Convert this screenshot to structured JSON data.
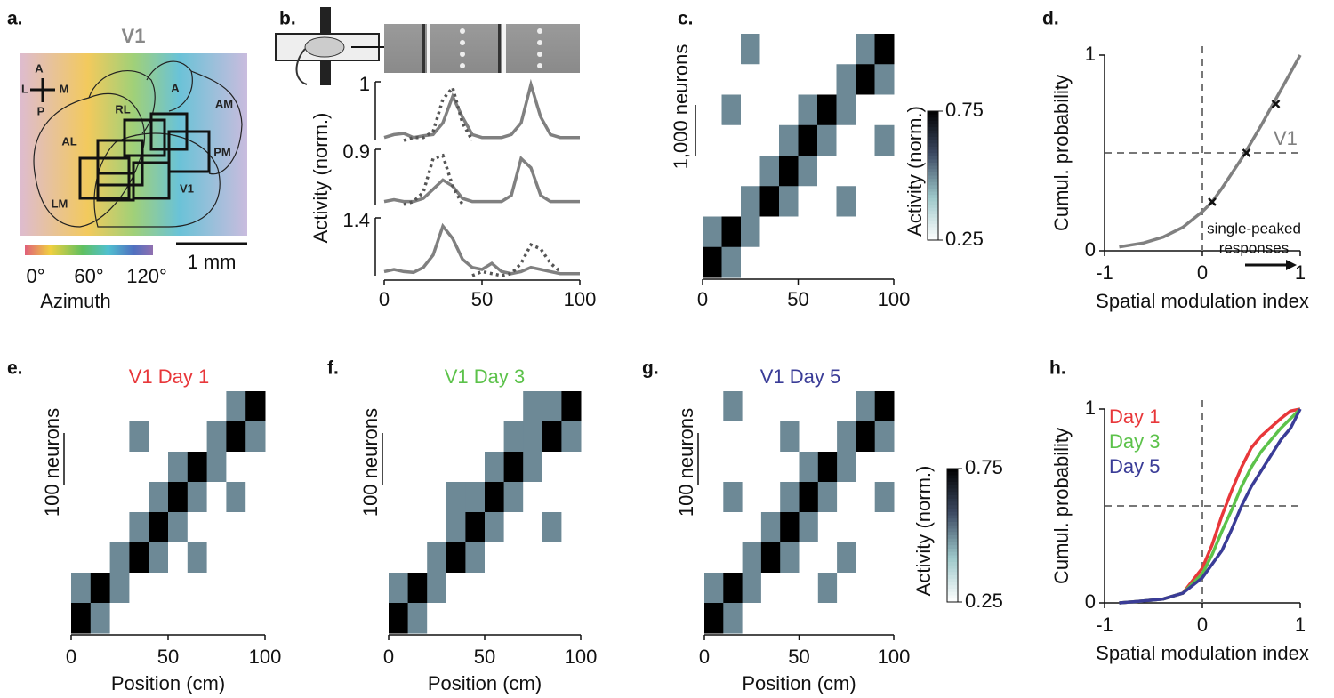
{
  "map": {
    "panel_label": "a.",
    "title": "V1",
    "compass": [
      "A",
      "L",
      "M",
      "P"
    ],
    "areas": [
      "RL",
      "A",
      "AM",
      "AL",
      "PM",
      "V1",
      "LM"
    ],
    "colorbar_ticks": [
      "0°",
      "60°",
      "120°"
    ],
    "colorbar_label": "Azimuth",
    "scale_bar": "1 mm"
  },
  "chart_data": [
    {
      "type": "line",
      "panel_label": "b.",
      "ylabel": "Activity (norm.)",
      "x": [
        0,
        5,
        10,
        15,
        20,
        25,
        30,
        35,
        40,
        45,
        50,
        55,
        60,
        65,
        70,
        75,
        80,
        85,
        90,
        95,
        100
      ],
      "xlim": [
        0,
        100
      ],
      "xticks": [
        0,
        50,
        100
      ],
      "subplots": [
        {
          "scale": 1,
          "ylim": [
            0,
            1
          ],
          "series": [
            {
              "color": "#808080",
              "style": "solid",
              "values": [
                0.05,
                0.1,
                0.12,
                0.05,
                0.08,
                0.1,
                0.3,
                0.75,
                0.4,
                0.1,
                0.05,
                0.05,
                0.05,
                0.1,
                0.3,
                0.95,
                0.4,
                0.1,
                0.05,
                0.05,
                0.05
              ]
            },
            {
              "color": "#555555",
              "style": "dotted",
              "values": [
                null,
                null,
                0.0,
                0.05,
                0.05,
                0.15,
                0.7,
                0.9,
                0.3,
                0.0,
                null,
                null,
                null,
                null,
                null,
                null,
                null,
                null,
                null,
                null,
                null
              ]
            }
          ]
        },
        {
          "scale": 0.9,
          "ylim": [
            0,
            0.9
          ],
          "series": [
            {
              "color": "#808080",
              "style": "solid",
              "values": [
                0.05,
                0.08,
                0.05,
                0.05,
                0.1,
                0.25,
                0.4,
                0.3,
                0.1,
                0.05,
                0.05,
                0.05,
                0.05,
                0.15,
                0.75,
                0.6,
                0.15,
                0.05,
                0.05,
                0.05,
                0.05
              ]
            },
            {
              "color": "#555555",
              "style": "dotted",
              "values": [
                null,
                null,
                0.0,
                0.05,
                0.2,
                0.75,
                0.8,
                0.3,
                0.0,
                null,
                null,
                null,
                null,
                null,
                null,
                null,
                null,
                null,
                null,
                null,
                null
              ]
            }
          ]
        },
        {
          "scale": 1.4,
          "ylim": [
            0,
            1.4
          ],
          "series": [
            {
              "color": "#808080",
              "style": "solid",
              "values": [
                0.1,
                0.15,
                0.1,
                0.08,
                0.2,
                0.5,
                1.2,
                0.9,
                0.4,
                0.2,
                0.15,
                0.3,
                0.1,
                0.05,
                0.1,
                0.2,
                0.15,
                0.1,
                0.05,
                0.05,
                0.05
              ]
            },
            {
              "color": "#555555",
              "style": "dotted",
              "values": [
                null,
                null,
                null,
                null,
                null,
                null,
                null,
                null,
                null,
                0.0,
                0.1,
                0.05,
                0.0,
                0.05,
                0.3,
                0.75,
                0.65,
                0.3,
                0.1,
                null,
                null
              ]
            }
          ]
        }
      ]
    },
    {
      "type": "heatmap",
      "panel_label": "c.",
      "scale_label": "1,000 neurons",
      "xlim": [
        0,
        100
      ],
      "xticks": [
        0,
        50,
        100
      ],
      "colorbar": {
        "label": "Activity (norm.)",
        "lim": [
          0.25,
          0.75
        ],
        "ticks": [
          0.25,
          0.75
        ],
        "colors": [
          "#ffffff",
          "#9cc7c9",
          "#3d4a63",
          "#000000"
        ]
      },
      "values": [
        [
          0.25,
          0.25,
          0.5,
          0.25,
          0.25,
          0.25,
          0.25,
          0.25,
          0.5,
          0.75
        ],
        [
          0.25,
          0.25,
          0.25,
          0.25,
          0.25,
          0.25,
          0.25,
          0.5,
          0.75,
          0.5
        ],
        [
          0.25,
          0.5,
          0.25,
          0.25,
          0.25,
          0.5,
          0.75,
          0.5,
          0.25,
          0.25
        ],
        [
          0.25,
          0.25,
          0.25,
          0.25,
          0.5,
          0.75,
          0.5,
          0.25,
          0.25,
          0.5
        ],
        [
          0.25,
          0.25,
          0.25,
          0.5,
          0.75,
          0.5,
          0.25,
          0.25,
          0.25,
          0.25
        ],
        [
          0.25,
          0.25,
          0.5,
          0.75,
          0.5,
          0.25,
          0.25,
          0.5,
          0.25,
          0.25
        ],
        [
          0.5,
          0.75,
          0.5,
          0.25,
          0.25,
          0.25,
          0.25,
          0.25,
          0.25,
          0.25
        ],
        [
          0.75,
          0.5,
          0.25,
          0.25,
          0.25,
          0.25,
          0.25,
          0.25,
          0.25,
          0.25
        ]
      ]
    },
    {
      "type": "line",
      "panel_label": "d.",
      "xlabel": "Spatial modulation index",
      "ylabel": "Cumul. probability",
      "xlim": [
        -1,
        1
      ],
      "ylim": [
        0,
        1
      ],
      "xticks": [
        -1,
        0,
        1
      ],
      "yticks": [
        0,
        1
      ],
      "ref_x": 0,
      "ref_y": 0.5,
      "legend": "beside curve",
      "annotation": [
        "single-peaked",
        "responses"
      ],
      "series": [
        {
          "name": "V1",
          "color": "#808080",
          "x": [
            -0.85,
            -0.6,
            -0.4,
            -0.2,
            0,
            0.1,
            0.2,
            0.4,
            0.6,
            0.8,
            1
          ],
          "values": [
            0.02,
            0.04,
            0.07,
            0.12,
            0.2,
            0.25,
            0.32,
            0.47,
            0.64,
            0.82,
            1
          ],
          "markers_x": [
            0.1,
            0.45,
            0.75
          ],
          "markers": [
            0.25,
            0.5,
            0.75
          ]
        }
      ]
    },
    {
      "type": "heatmap",
      "panel_label": "e.",
      "title": "V1 Day 1",
      "title_color": "#e8373a",
      "scale_label": "100 neurons",
      "xlabel": "Position (cm)",
      "xlim": [
        0,
        100
      ],
      "xticks": [
        0,
        50,
        100
      ],
      "colors": [
        "#ffffff",
        "#9cc7c9",
        "#3d4a63",
        "#000000"
      ],
      "clim": [
        0.25,
        0.75
      ],
      "values": [
        [
          0.25,
          0.25,
          0.25,
          0.25,
          0.25,
          0.25,
          0.25,
          0.25,
          0.5,
          0.75
        ],
        [
          0.25,
          0.25,
          0.25,
          0.5,
          0.25,
          0.25,
          0.25,
          0.5,
          0.75,
          0.5
        ],
        [
          0.25,
          0.25,
          0.25,
          0.25,
          0.25,
          0.5,
          0.75,
          0.5,
          0.25,
          0.25
        ],
        [
          0.25,
          0.25,
          0.25,
          0.25,
          0.5,
          0.75,
          0.5,
          0.25,
          0.5,
          0.25
        ],
        [
          0.25,
          0.25,
          0.25,
          0.5,
          0.75,
          0.5,
          0.25,
          0.25,
          0.25,
          0.25
        ],
        [
          0.25,
          0.25,
          0.5,
          0.75,
          0.5,
          0.25,
          0.5,
          0.25,
          0.25,
          0.25
        ],
        [
          0.5,
          0.75,
          0.5,
          0.25,
          0.25,
          0.25,
          0.25,
          0.25,
          0.25,
          0.25
        ],
        [
          0.75,
          0.5,
          0.25,
          0.25,
          0.25,
          0.25,
          0.25,
          0.25,
          0.25,
          0.25
        ]
      ]
    },
    {
      "type": "heatmap",
      "panel_label": "f.",
      "title": "V1 Day 3",
      "title_color": "#5cc24a",
      "scale_label": "100 neurons",
      "xlabel": "Position (cm)",
      "xlim": [
        0,
        100
      ],
      "xticks": [
        0,
        50,
        100
      ],
      "colors": [
        "#ffffff",
        "#9cc7c9",
        "#3d4a63",
        "#000000"
      ],
      "clim": [
        0.25,
        0.75
      ],
      "values": [
        [
          0.25,
          0.25,
          0.25,
          0.25,
          0.25,
          0.25,
          0.25,
          0.5,
          0.5,
          0.75
        ],
        [
          0.25,
          0.25,
          0.25,
          0.25,
          0.25,
          0.25,
          0.5,
          0.5,
          0.75,
          0.5
        ],
        [
          0.25,
          0.25,
          0.25,
          0.25,
          0.25,
          0.5,
          0.75,
          0.5,
          0.25,
          0.25
        ],
        [
          0.25,
          0.25,
          0.25,
          0.5,
          0.5,
          0.75,
          0.5,
          0.25,
          0.25,
          0.25
        ],
        [
          0.25,
          0.25,
          0.25,
          0.5,
          0.75,
          0.5,
          0.25,
          0.25,
          0.5,
          0.25
        ],
        [
          0.25,
          0.25,
          0.5,
          0.75,
          0.5,
          0.25,
          0.25,
          0.25,
          0.25,
          0.25
        ],
        [
          0.5,
          0.75,
          0.5,
          0.25,
          0.25,
          0.25,
          0.25,
          0.25,
          0.25,
          0.25
        ],
        [
          0.75,
          0.5,
          0.25,
          0.25,
          0.25,
          0.25,
          0.25,
          0.25,
          0.25,
          0.25
        ]
      ]
    },
    {
      "type": "heatmap",
      "panel_label": "g.",
      "title": "V1 Day 5",
      "title_color": "#3a3c97",
      "scale_label": "100 neurons",
      "xlabel": "Position (cm)",
      "xlim": [
        0,
        100
      ],
      "xticks": [
        0,
        50,
        100
      ],
      "colorbar": {
        "label": "Activity (norm.)",
        "lim": [
          0.25,
          0.75
        ],
        "ticks": [
          0.25,
          0.75
        ],
        "colors": [
          "#ffffff",
          "#9cc7c9",
          "#3d4a63",
          "#000000"
        ]
      },
      "values": [
        [
          0.25,
          0.5,
          0.25,
          0.25,
          0.25,
          0.25,
          0.25,
          0.25,
          0.5,
          0.75
        ],
        [
          0.25,
          0.25,
          0.25,
          0.25,
          0.5,
          0.25,
          0.25,
          0.5,
          0.75,
          0.5
        ],
        [
          0.25,
          0.25,
          0.25,
          0.25,
          0.25,
          0.5,
          0.75,
          0.5,
          0.25,
          0.25
        ],
        [
          0.25,
          0.5,
          0.25,
          0.25,
          0.5,
          0.75,
          0.5,
          0.25,
          0.25,
          0.5
        ],
        [
          0.25,
          0.25,
          0.25,
          0.5,
          0.75,
          0.5,
          0.25,
          0.25,
          0.25,
          0.25
        ],
        [
          0.25,
          0.25,
          0.5,
          0.75,
          0.5,
          0.25,
          0.25,
          0.5,
          0.25,
          0.25
        ],
        [
          0.5,
          0.75,
          0.5,
          0.25,
          0.25,
          0.25,
          0.5,
          0.25,
          0.25,
          0.25
        ],
        [
          0.75,
          0.5,
          0.25,
          0.25,
          0.25,
          0.25,
          0.25,
          0.25,
          0.25,
          0.25
        ]
      ]
    },
    {
      "type": "line",
      "panel_label": "h.",
      "xlabel": "Spatial modulation index",
      "ylabel": "Cumul. probability",
      "xlim": [
        -1,
        1
      ],
      "ylim": [
        0,
        1
      ],
      "xticks": [
        -1,
        0,
        1
      ],
      "yticks": [
        0,
        1
      ],
      "ref_x": 0,
      "ref_y": 0.5,
      "legend": "upper left",
      "series": [
        {
          "name": "Day 1",
          "color": "#e8373a",
          "x": [
            -0.85,
            -0.6,
            -0.4,
            -0.2,
            0,
            0.1,
            0.2,
            0.3,
            0.4,
            0.5,
            0.6,
            0.8,
            0.9,
            1
          ],
          "values": [
            0,
            0.01,
            0.02,
            0.05,
            0.18,
            0.3,
            0.45,
            0.58,
            0.7,
            0.8,
            0.86,
            0.95,
            0.99,
            1
          ]
        },
        {
          "name": "Day 3",
          "color": "#5cc24a",
          "x": [
            -0.85,
            -0.6,
            -0.4,
            -0.2,
            0,
            0.1,
            0.2,
            0.3,
            0.4,
            0.5,
            0.6,
            0.8,
            0.9,
            1
          ],
          "values": [
            0,
            0.01,
            0.02,
            0.05,
            0.15,
            0.25,
            0.37,
            0.48,
            0.6,
            0.7,
            0.78,
            0.9,
            0.95,
            1
          ]
        },
        {
          "name": "Day 5",
          "color": "#3a3c97",
          "x": [
            -0.85,
            -0.6,
            -0.4,
            -0.2,
            0,
            0.1,
            0.2,
            0.3,
            0.4,
            0.5,
            0.6,
            0.8,
            0.9,
            1
          ],
          "values": [
            0,
            0.01,
            0.02,
            0.05,
            0.13,
            0.2,
            0.27,
            0.38,
            0.5,
            0.6,
            0.68,
            0.84,
            0.9,
            1
          ]
        }
      ]
    }
  ]
}
